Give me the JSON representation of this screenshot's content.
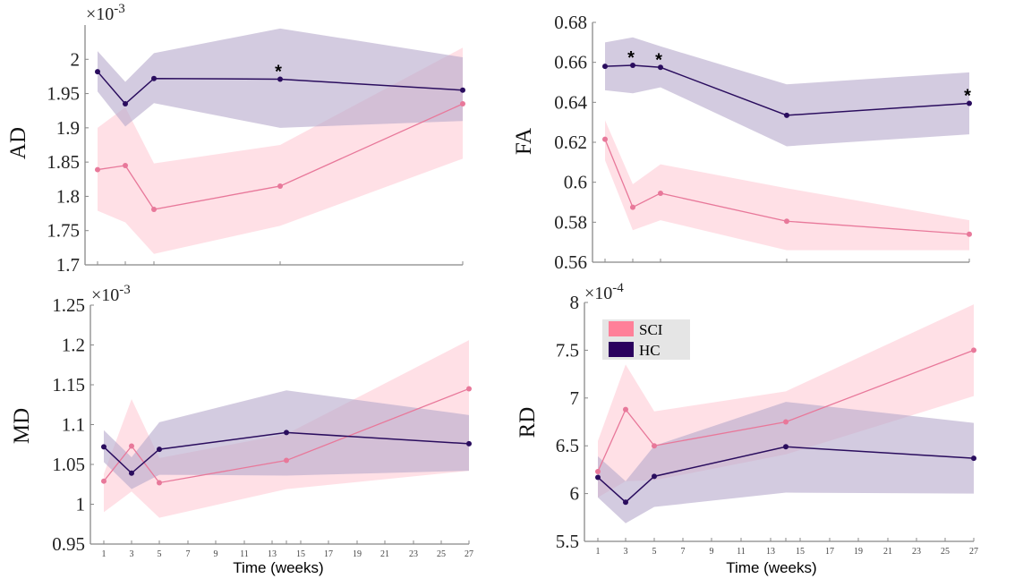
{
  "colors": {
    "SCI_line": "#e8789a",
    "SCI_fill": "#ffd6de",
    "HC_line": "#2a0d5e",
    "HC_fill": "#b6a8cc",
    "legend_SCI": "#ff8099",
    "legend_HC": "#2b005e",
    "legend_bg": "#e5e5e5",
    "axis": "#888888"
  },
  "legend": {
    "items": [
      {
        "label": "SCI",
        "color": "#ff8099"
      },
      {
        "label": "HC",
        "color": "#2b005e"
      }
    ],
    "panel": "RD",
    "placement": "top-left"
  },
  "chart_data": [
    {
      "id": "AD",
      "type": "line",
      "ylabel": "AD",
      "xlabel": "",
      "exponent": "×10^-3",
      "exponent_base": "×10",
      "exponent_power": "-3",
      "x": [
        1,
        3,
        5,
        14,
        27
      ],
      "ylim": [
        1.7,
        2.05
      ],
      "yticks": [
        1.7,
        1.75,
        1.8,
        1.85,
        1.9,
        1.95,
        2.0
      ],
      "ytick_labels": [
        "1.7",
        "1.75",
        "1.8",
        "1.85",
        "1.9",
        "1.95",
        "2"
      ],
      "xticks": [
        1,
        3,
        5,
        14,
        27
      ],
      "xtick_labels": [],
      "series": [
        {
          "name": "SCI",
          "values": [
            1.839,
            1.845,
            1.781,
            1.815,
            1.935
          ],
          "upper": [
            1.9,
            1.93,
            1.848,
            1.875,
            2.017
          ],
          "lower": [
            1.779,
            1.762,
            1.716,
            1.757,
            1.855
          ]
        },
        {
          "name": "HC",
          "values": [
            1.982,
            1.935,
            1.972,
            1.971,
            1.955
          ],
          "upper": [
            2.012,
            1.967,
            2.009,
            2.045,
            2.003
          ],
          "lower": [
            1.953,
            1.902,
            1.936,
            1.9,
            1.91
          ]
        }
      ],
      "annotations": [
        {
          "text": "*",
          "x": 14,
          "series": "HC"
        }
      ]
    },
    {
      "id": "FA",
      "type": "line",
      "ylabel": "FA",
      "xlabel": "",
      "exponent": "",
      "exponent_base": "",
      "exponent_power": "",
      "x": [
        1,
        3,
        5,
        14,
        27
      ],
      "ylim": [
        0.56,
        0.68
      ],
      "yticks": [
        0.56,
        0.58,
        0.6,
        0.62,
        0.64,
        0.66,
        0.68
      ],
      "ytick_labels": [
        "0.56",
        "0.58",
        "0.6",
        "0.62",
        "0.64",
        "0.66",
        "0.68"
      ],
      "xticks": [
        1,
        3,
        5,
        14,
        27
      ],
      "xtick_labels": [],
      "series": [
        {
          "name": "SCI",
          "values": [
            0.6215,
            0.5875,
            0.5945,
            0.5805,
            0.574
          ],
          "upper": [
            0.631,
            0.599,
            0.609,
            0.597,
            0.581
          ],
          "lower": [
            0.611,
            0.576,
            0.581,
            0.566,
            0.566
          ]
        },
        {
          "name": "HC",
          "values": [
            0.658,
            0.6585,
            0.6575,
            0.6335,
            0.6395
          ],
          "upper": [
            0.67,
            0.6725,
            0.668,
            0.649,
            0.655
          ],
          "lower": [
            0.646,
            0.6445,
            0.6475,
            0.618,
            0.624
          ]
        }
      ],
      "annotations": [
        {
          "text": "*",
          "x": 3,
          "series": "HC"
        },
        {
          "text": "*",
          "x": 5,
          "series": "HC"
        },
        {
          "text": "*",
          "x": 27,
          "series": "HC"
        }
      ]
    },
    {
      "id": "MD",
      "type": "line",
      "ylabel": "MD",
      "xlabel": "Time (weeks)",
      "exponent": "×10^-3",
      "exponent_base": "×10",
      "exponent_power": "-3",
      "x": [
        1,
        3,
        5,
        14,
        27
      ],
      "ylim": [
        0.95,
        1.25
      ],
      "yticks": [
        0.95,
        1.0,
        1.05,
        1.1,
        1.15,
        1.2,
        1.25
      ],
      "ytick_labels": [
        "0.95",
        "1",
        "1.05",
        "1.1",
        "1.15",
        "1.2",
        "1.25"
      ],
      "xticks": [
        1,
        3,
        5,
        7,
        9,
        11,
        13,
        14,
        15,
        17,
        19,
        21,
        23,
        25,
        27
      ],
      "xtick_labels": [
        "1",
        "3",
        "5",
        "7",
        "9",
        "11",
        "13",
        "",
        "15",
        "17",
        "19",
        "21",
        "23",
        "25",
        "27"
      ],
      "series": [
        {
          "name": "SCI",
          "values": [
            1.029,
            1.073,
            1.027,
            1.055,
            1.145
          ],
          "upper": [
            1.038,
            1.132,
            1.058,
            1.088,
            1.206
          ],
          "lower": [
            0.99,
            1.016,
            0.983,
            1.019,
            1.042
          ]
        },
        {
          "name": "HC",
          "values": [
            1.072,
            1.039,
            1.069,
            1.09,
            1.076
          ],
          "upper": [
            1.093,
            1.059,
            1.103,
            1.143,
            1.112
          ],
          "lower": [
            1.053,
            1.019,
            1.037,
            1.036,
            1.042
          ]
        }
      ],
      "annotations": []
    },
    {
      "id": "RD",
      "type": "line",
      "ylabel": "RD",
      "xlabel": "Time (weeks)",
      "exponent": "×10^-4",
      "exponent_base": "×10",
      "exponent_power": "-4",
      "x": [
        1,
        3,
        5,
        14,
        27
      ],
      "ylim": [
        5.5,
        8.0
      ],
      "yticks": [
        5.5,
        6.0,
        6.5,
        7.0,
        7.5,
        8.0
      ],
      "ytick_labels": [
        "5.5",
        "6",
        "6.5",
        "7",
        "7.5",
        "8"
      ],
      "xticks": [
        1,
        3,
        5,
        7,
        9,
        11,
        13,
        14,
        15,
        17,
        19,
        21,
        23,
        25,
        27
      ],
      "xtick_labels": [
        "1",
        "3",
        "5",
        "7",
        "9",
        "11",
        "13",
        "",
        "15",
        "17",
        "19",
        "21",
        "23",
        "25",
        "27"
      ],
      "series": [
        {
          "name": "SCI",
          "values": [
            6.23,
            6.88,
            6.5,
            6.75,
            7.5
          ],
          "upper": [
            6.55,
            7.35,
            6.86,
            7.07,
            7.98
          ],
          "lower": [
            5.96,
            6.13,
            6.14,
            6.41,
            7.02
          ]
        },
        {
          "name": "HC",
          "values": [
            6.17,
            5.91,
            6.18,
            6.49,
            6.37
          ],
          "upper": [
            6.39,
            6.13,
            6.5,
            6.96,
            6.74
          ],
          "lower": [
            5.96,
            5.69,
            5.86,
            6.01,
            6.0
          ]
        }
      ],
      "annotations": []
    }
  ]
}
